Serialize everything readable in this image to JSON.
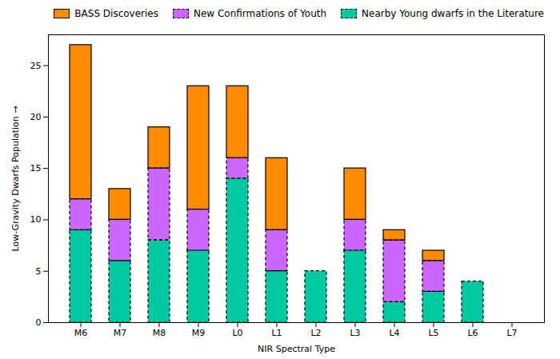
{
  "chart_data": {
    "type": "bar",
    "stacked": true,
    "xlabel": "NIR Spectral Type",
    "ylabel": "Low-Gravity Dwarfs Population",
    "categories": [
      "M6",
      "M7",
      "M8",
      "M9",
      "L0",
      "L1",
      "L2",
      "L3",
      "L4",
      "L5",
      "L6",
      "L7"
    ],
    "series": [
      {
        "name": "Nearby Young dwarfs in the Literature",
        "color": "#00C8A0",
        "line_style": "dashed",
        "values": [
          9,
          6,
          8,
          7,
          14,
          5,
          5,
          7,
          2,
          3,
          4,
          0
        ]
      },
      {
        "name": "New Confirmations of Youth",
        "color": "#CC66FF",
        "line_style": "dashed",
        "values": [
          3,
          4,
          7,
          4,
          2,
          4,
          0,
          3,
          6,
          3,
          0,
          0
        ]
      },
      {
        "name": "BASS Discoveries",
        "color": "#FF8C00",
        "line_style": "solid",
        "values": [
          15,
          3,
          4,
          12,
          7,
          7,
          0,
          5,
          1,
          1,
          0,
          0
        ]
      }
    ],
    "ylim": [
      0,
      28
    ],
    "yticks": [
      0,
      5,
      10,
      15,
      20,
      25
    ],
    "grid": false,
    "legend": "upper right"
  }
}
